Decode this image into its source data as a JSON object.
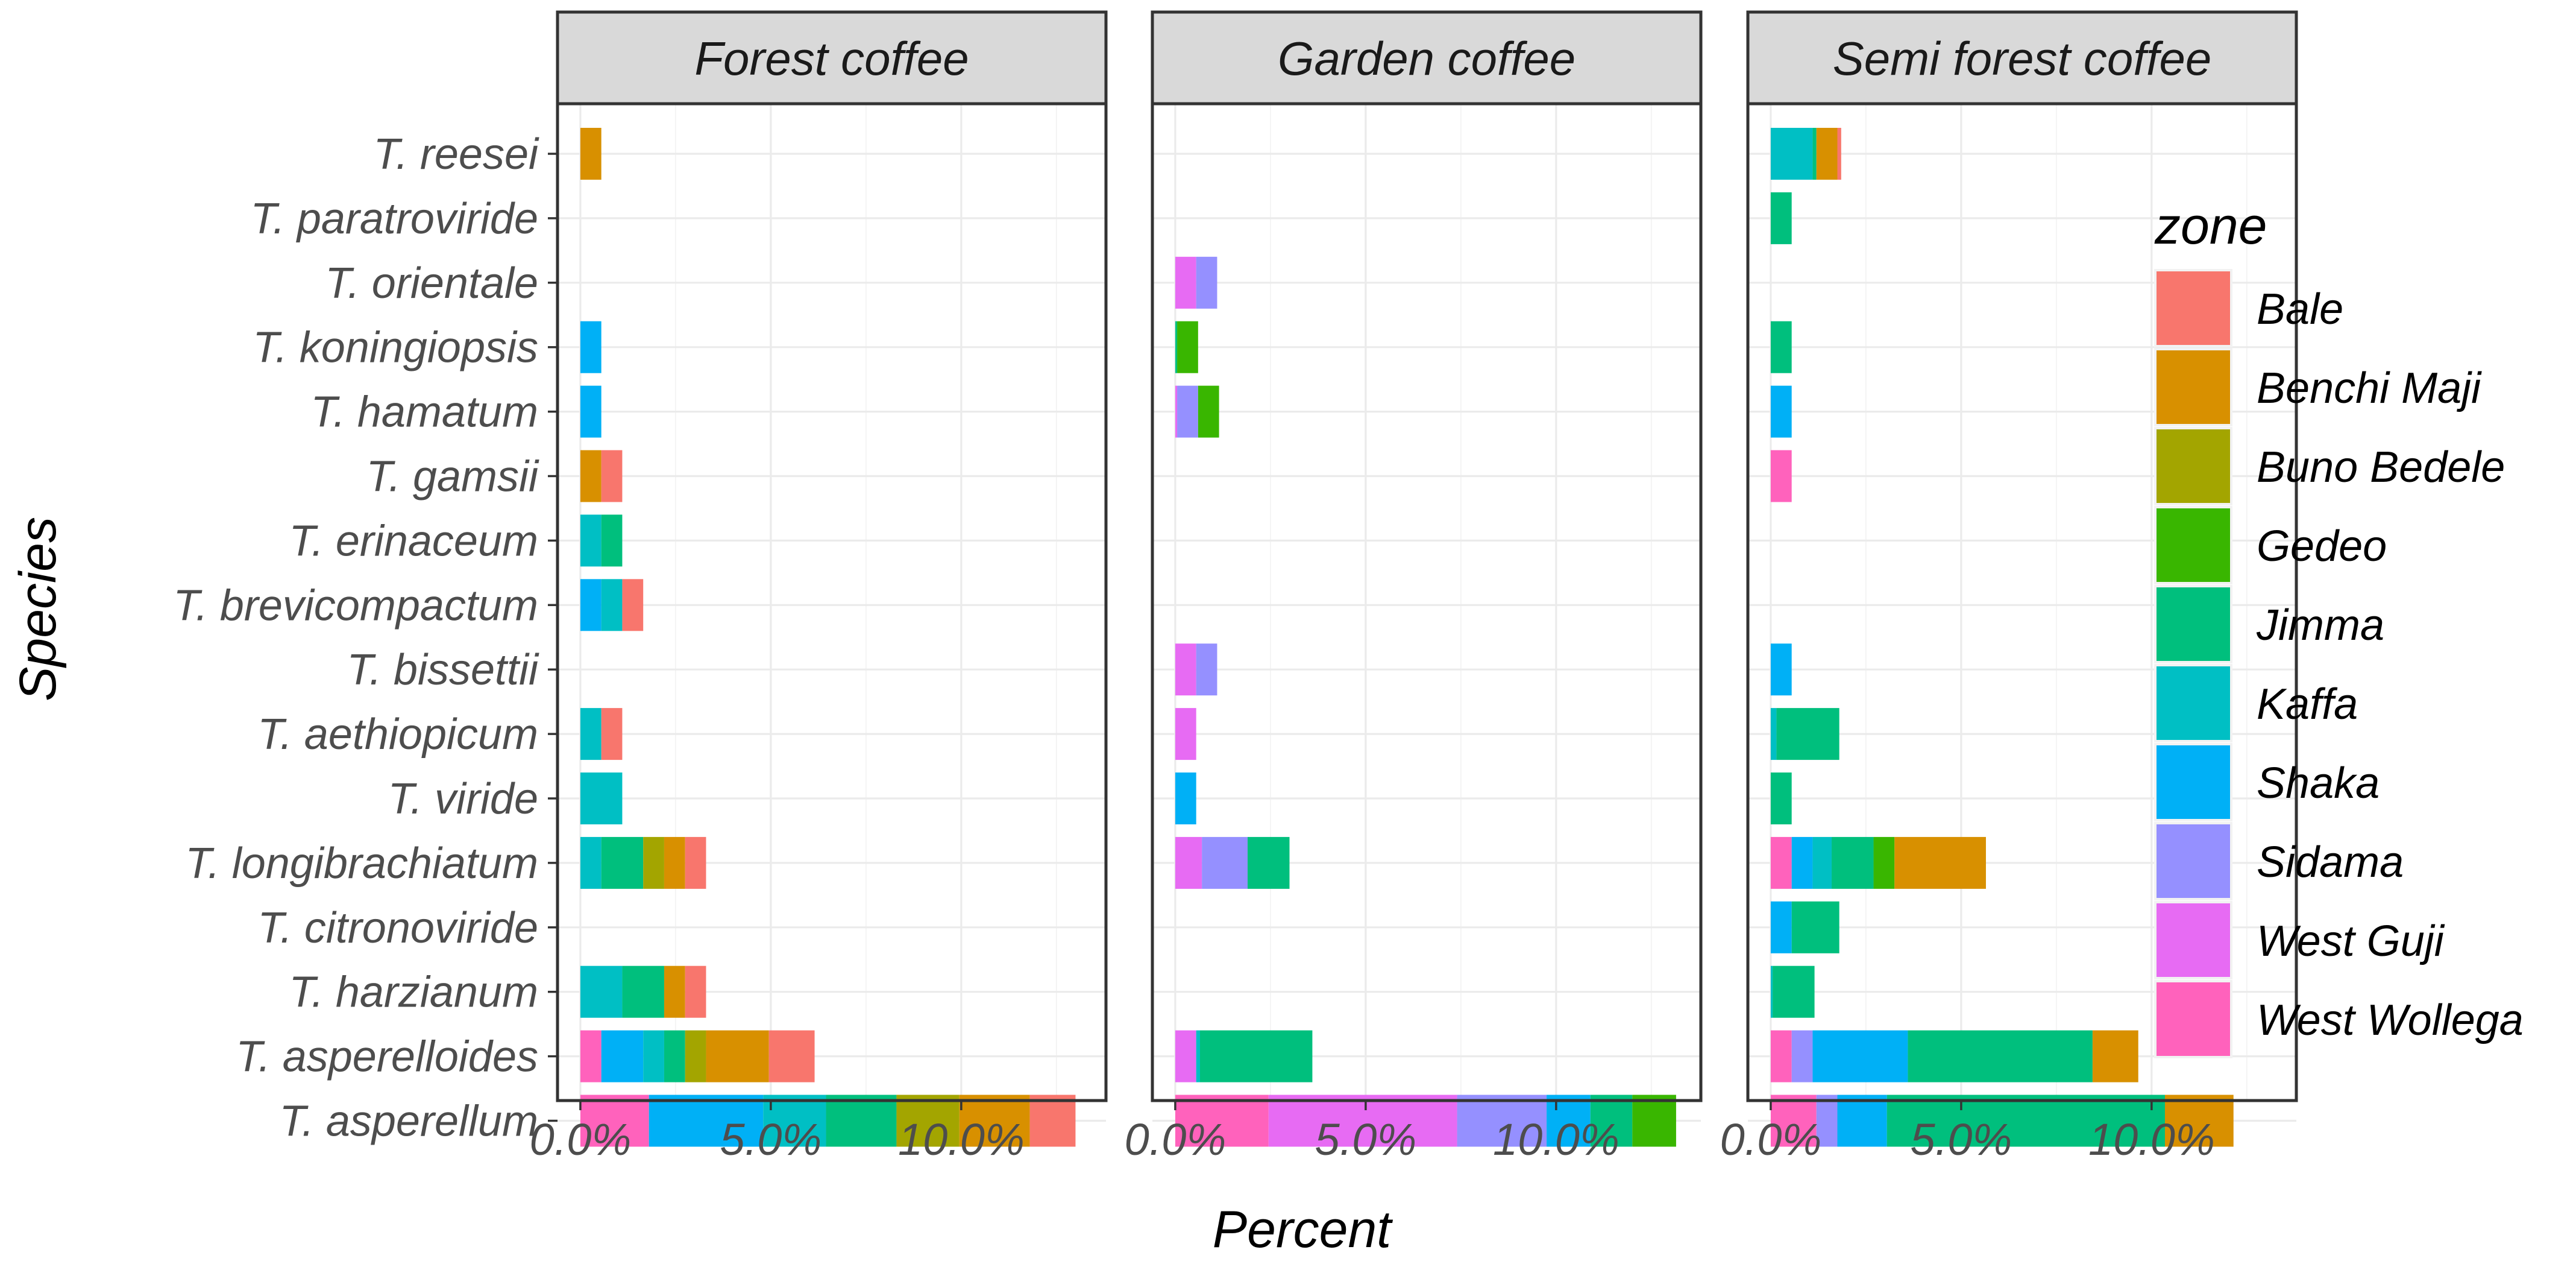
{
  "chart_data": {
    "type": "bar",
    "orientation": "horizontal",
    "stacked": true,
    "xlabel": "Percent",
    "ylabel": "Species",
    "xlim": [
      -0.6,
      13.8
    ],
    "xticks": [
      0,
      5,
      10
    ],
    "xtick_labels": [
      "0.0%",
      "5.0%",
      "10.0%"
    ],
    "grid": true,
    "legend_title": "zone",
    "legend_position": "right",
    "categories": [
      "T. reesei",
      "T. paratroviride",
      "T. orientale",
      "T. koningiopsis",
      "T. hamatum",
      "T. gamsii",
      "T. erinaceum",
      "T. brevicompactum",
      "T. bissettii",
      "T. aethiopicum",
      "T. viride",
      "T. longibrachiatum",
      "T. citronoviride",
      "T. harzianum",
      "T. asperelloides",
      "T. asperellum"
    ],
    "zones": [
      {
        "name": "Bale",
        "color": "#F8766D"
      },
      {
        "name": "Benchi Maji",
        "color": "#D89000"
      },
      {
        "name": "Buno Bedele",
        "color": "#A3A500"
      },
      {
        "name": "Gedeo",
        "color": "#39B600"
      },
      {
        "name": "Jimma",
        "color": "#00BF7D"
      },
      {
        "name": "Kaffa",
        "color": "#00BFC4"
      },
      {
        "name": "Shaka",
        "color": "#00B0F6"
      },
      {
        "name": "Sidama",
        "color": "#9590FF"
      },
      {
        "name": "West Guji",
        "color": "#E76BF3"
      },
      {
        "name": "West Wollega",
        "color": "#FF62BC"
      }
    ],
    "panels": [
      {
        "title": "Forest coffee",
        "series": {
          "T. reesei": [
            0,
            0.55,
            0,
            0,
            0,
            0,
            0,
            0,
            0,
            0
          ],
          "T. paratroviride": [
            0,
            0,
            0,
            0,
            0,
            0,
            0,
            0,
            0,
            0
          ],
          "T. orientale": [
            0,
            0,
            0,
            0,
            0,
            0,
            0,
            0,
            0,
            0
          ],
          "T. koningiopsis": [
            0,
            0,
            0,
            0,
            0,
            0,
            0.55,
            0,
            0,
            0
          ],
          "T. hamatum": [
            0,
            0,
            0,
            0,
            0,
            0,
            0.55,
            0,
            0,
            0
          ],
          "T. gamsii": [
            0.55,
            0.55,
            0,
            0,
            0,
            0,
            0,
            0,
            0,
            0
          ],
          "T. erinaceum": [
            0,
            0,
            0,
            0,
            0.55,
            0.55,
            0,
            0,
            0,
            0
          ],
          "T. brevicompactum": [
            0.55,
            0,
            0,
            0,
            0,
            0.55,
            0.55,
            0,
            0,
            0
          ],
          "T. bissettii": [
            0,
            0,
            0,
            0,
            0,
            0,
            0,
            0,
            0,
            0
          ],
          "T. aethiopicum": [
            0.55,
            0,
            0,
            0,
            0,
            0.55,
            0,
            0,
            0,
            0
          ],
          "T. viride": [
            0,
            0,
            0,
            0,
            0,
            1.1,
            0,
            0,
            0,
            0
          ],
          "T. longibrachiatum": [
            0.55,
            0.55,
            0.55,
            0,
            1.1,
            0.55,
            0,
            0,
            0,
            0
          ],
          "T. citronoviride": [
            0,
            0,
            0,
            0,
            0,
            0,
            0,
            0,
            0,
            0
          ],
          "T. harzianum": [
            0.55,
            0.55,
            0,
            0,
            1.1,
            1.1,
            0,
            0,
            0,
            0
          ],
          "T. asperelloides": [
            1.2,
            1.65,
            0.55,
            0,
            0.55,
            0.55,
            1.1,
            0,
            0,
            0.55
          ],
          "T. asperellum": [
            1.2,
            1.85,
            1.65,
            0,
            1.85,
            1.65,
            3.0,
            0,
            0,
            1.8
          ]
        }
      },
      {
        "title": "Garden coffee",
        "series": {
          "T. reesei": [
            0,
            0,
            0,
            0,
            0,
            0,
            0,
            0,
            0,
            0
          ],
          "T. paratroviride": [
            0,
            0,
            0,
            0,
            0,
            0,
            0,
            0,
            0,
            0
          ],
          "T. orientale": [
            0,
            0,
            0,
            0,
            0,
            0,
            0,
            0.55,
            0.55,
            0
          ],
          "T. koningiopsis": [
            0,
            0,
            0,
            0.55,
            0.05,
            0,
            0,
            0,
            0,
            0
          ],
          "T. hamatum": [
            0,
            0,
            0,
            0.55,
            0,
            0,
            0,
            0.55,
            0.05,
            0
          ],
          "T. gamsii": [
            0,
            0,
            0,
            0,
            0,
            0,
            0,
            0,
            0,
            0
          ],
          "T. erinaceum": [
            0,
            0,
            0,
            0,
            0,
            0,
            0,
            0,
            0,
            0
          ],
          "T. brevicompactum": [
            0,
            0,
            0,
            0,
            0,
            0,
            0,
            0,
            0,
            0
          ],
          "T. bissettii": [
            0,
            0,
            0,
            0,
            0,
            0,
            0,
            0.55,
            0.55,
            0
          ],
          "T. aethiopicum": [
            0,
            0,
            0,
            0,
            0,
            0,
            0,
            0,
            0.55,
            0
          ],
          "T. viride": [
            0,
            0,
            0,
            0,
            0,
            0,
            0.55,
            0,
            0,
            0
          ],
          "T. longibrachiatum": [
            0,
            0,
            0,
            0,
            1.1,
            0,
            0,
            1.2,
            0.7,
            0
          ],
          "T. citronoviride": [
            0,
            0,
            0,
            0,
            0,
            0,
            0,
            0,
            0,
            0
          ],
          "T. harzianum": [
            0,
            0,
            0,
            0,
            0,
            0,
            0,
            0,
            0,
            0
          ],
          "T. asperelloides": [
            0,
            0,
            0,
            0,
            2.95,
            0.1,
            0,
            0,
            0.55,
            0
          ],
          "T. asperellum": [
            0,
            0,
            0,
            1.15,
            1.1,
            0,
            1.15,
            2.35,
            4.95,
            2.45
          ]
        }
      },
      {
        "title": "Semi forest coffee",
        "series": {
          "T. reesei": [
            0.1,
            0.55,
            0,
            0,
            0.1,
            1.1,
            0,
            0,
            0,
            0
          ],
          "T. paratroviride": [
            0,
            0,
            0,
            0,
            0.55,
            0,
            0,
            0,
            0,
            0
          ],
          "T. orientale": [
            0,
            0,
            0,
            0,
            0,
            0,
            0,
            0,
            0,
            0
          ],
          "T. koningiopsis": [
            0,
            0,
            0,
            0,
            0.55,
            0,
            0,
            0,
            0,
            0
          ],
          "T. hamatum": [
            0,
            0,
            0,
            0,
            0,
            0,
            0.55,
            0,
            0,
            0
          ],
          "T. gamsii": [
            0,
            0,
            0,
            0,
            0,
            0,
            0,
            0,
            0,
            0.55
          ],
          "T. erinaceum": [
            0,
            0,
            0,
            0,
            0,
            0,
            0,
            0,
            0,
            0
          ],
          "T. brevicompactum": [
            0,
            0,
            0,
            0,
            0,
            0,
            0,
            0,
            0,
            0
          ],
          "T. bissettii": [
            0,
            0,
            0,
            0,
            0,
            0,
            0.55,
            0,
            0,
            0
          ],
          "T. aethiopicum": [
            0,
            0,
            0,
            0,
            1.65,
            0.15,
            0,
            0,
            0,
            0
          ],
          "T. viride": [
            0,
            0,
            0,
            0,
            0.55,
            0,
            0,
            0,
            0,
            0
          ],
          "T. longibrachiatum": [
            0,
            2.4,
            0,
            0.55,
            1.1,
            0.5,
            0.55,
            0,
            0,
            0.55
          ],
          "T. citronoviride": [
            0,
            0,
            0,
            0,
            1.25,
            0,
            0.55,
            0,
            0,
            0
          ],
          "T. harzianum": [
            0,
            0,
            0,
            0,
            1.1,
            0.05,
            0,
            0,
            0,
            0
          ],
          "T. asperelloides": [
            0,
            1.2,
            0,
            0,
            4.85,
            0,
            2.5,
            0.55,
            0,
            0.55
          ],
          "T. asperellum": [
            0,
            1.8,
            0,
            0,
            7.3,
            0,
            1.3,
            0.55,
            0,
            1.2
          ]
        }
      }
    ]
  }
}
